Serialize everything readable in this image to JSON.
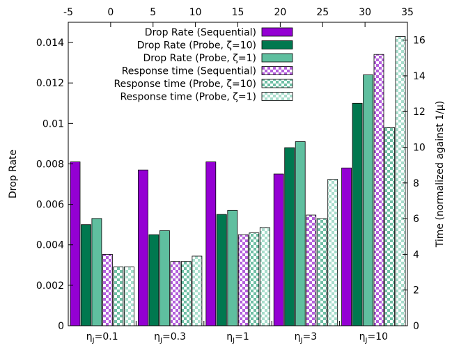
{
  "chart_data": {
    "type": "bar",
    "ylabel": "Drop Rate",
    "y2label": "Time (normalized against 1/μ)",
    "ylim": [
      0,
      0.015
    ],
    "y2lim": [
      0,
      17
    ],
    "x2lim": [
      -5,
      35
    ],
    "y_ticks": [
      "0",
      "0.002",
      "0.004",
      "0.006",
      "0.008",
      "0.01",
      "0.012",
      "0.014"
    ],
    "y2_ticks": [
      "0",
      "2",
      "4",
      "6",
      "8",
      "10",
      "12",
      "14",
      "16"
    ],
    "x2_ticks": [
      "-5",
      "0",
      "5",
      "10",
      "15",
      "20",
      "25",
      "30",
      "35"
    ],
    "categories": [
      {
        "prefix": "η",
        "sub": "J",
        "suffix": "=0.1"
      },
      {
        "prefix": "η",
        "sub": "J",
        "suffix": "=0.3"
      },
      {
        "prefix": "η",
        "sub": "J",
        "suffix": "=1"
      },
      {
        "prefix": "η",
        "sub": "J",
        "suffix": "=3"
      },
      {
        "prefix": "η",
        "sub": "J",
        "suffix": "=10"
      }
    ],
    "legend_position": "top-right",
    "series": [
      {
        "name": "Drop Rate (Sequential)",
        "axis": "left",
        "color": "#9400d3",
        "pattern": "solid",
        "values": [
          0.0081,
          0.0077,
          0.0081,
          0.0075,
          0.0078
        ]
      },
      {
        "name": "Drop Rate (Probe, ζ=10)",
        "axis": "left",
        "color": "#00784f",
        "pattern": "solid",
        "values": [
          0.005,
          0.0045,
          0.0055,
          0.0088,
          0.011
        ]
      },
      {
        "name": "Drop Rate (Probe, ζ=1)",
        "axis": "left",
        "color": "#5fbf9f",
        "pattern": "solid",
        "values": [
          0.0053,
          0.0047,
          0.0057,
          0.0091,
          0.0124
        ]
      },
      {
        "name": "Response time (Sequential)",
        "axis": "right",
        "color": "#b45fdc",
        "pattern": "checker",
        "values": [
          4.0,
          3.6,
          5.1,
          6.2,
          15.2
        ]
      },
      {
        "name": "Response time (Probe, ζ=10)",
        "axis": "right",
        "color": "#6fbfa5",
        "pattern": "checker",
        "values": [
          3.3,
          3.6,
          5.2,
          6.0,
          11.1
        ]
      },
      {
        "name": "Response time (Probe, ζ=1)",
        "axis": "right",
        "color": "#a8ddcc",
        "pattern": "checker",
        "values": [
          3.3,
          3.9,
          5.5,
          8.2,
          16.2
        ]
      }
    ]
  }
}
